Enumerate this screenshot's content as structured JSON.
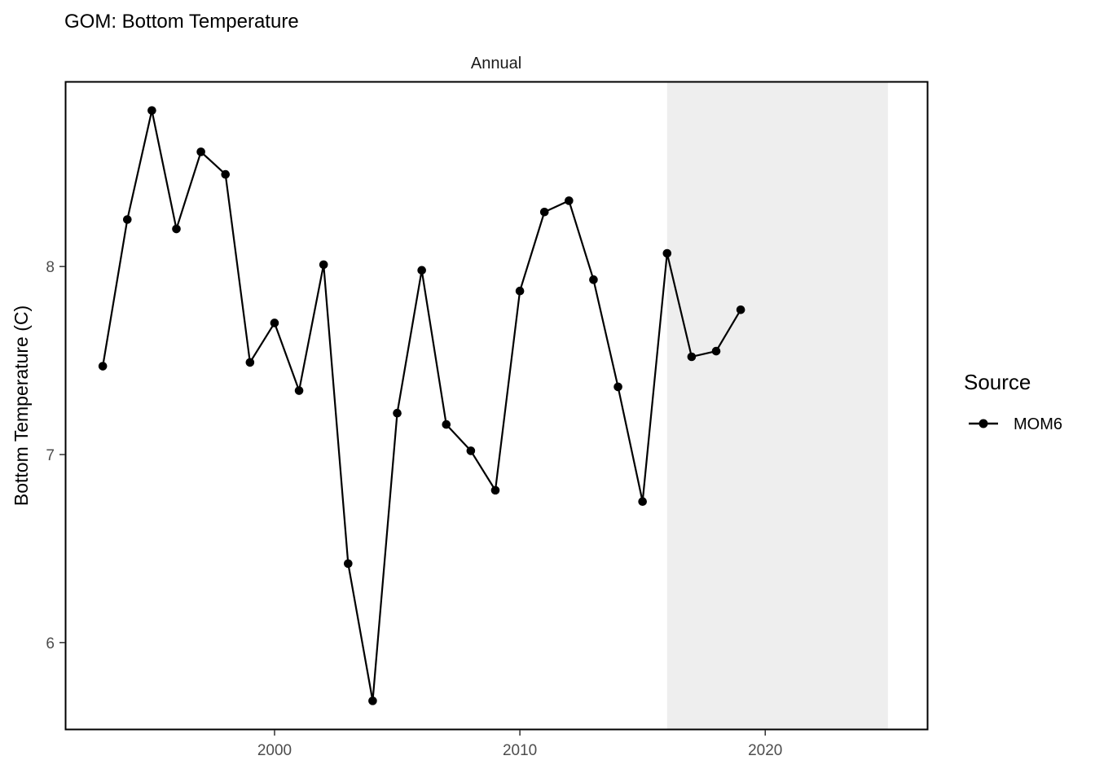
{
  "chart_data": {
    "type": "line",
    "title": "GOM: Bottom Temperature",
    "facet_label": "Annual",
    "xlabel": "",
    "ylabel": "Bottom Temperature (C)",
    "xlim": [
      1991.5,
      2026.6
    ],
    "ylim": [
      5.54,
      8.98
    ],
    "x_ticks": [
      2000,
      2010,
      2020
    ],
    "y_ticks": [
      6,
      7,
      8
    ],
    "grid": false,
    "shaded_region": {
      "x_start": 2016,
      "x_end": 2025,
      "color": "#eeeeee"
    },
    "legend": {
      "title": "Source",
      "position": "right"
    },
    "series": [
      {
        "name": "MOM6",
        "color": "#000000",
        "x": [
          1993,
          1994,
          1995,
          1996,
          1997,
          1998,
          1999,
          2000,
          2001,
          2002,
          2003,
          2004,
          2005,
          2006,
          2007,
          2008,
          2009,
          2010,
          2011,
          2012,
          2013,
          2014,
          2015,
          2016,
          2017,
          2018,
          2019
        ],
        "y": [
          7.47,
          8.25,
          8.83,
          8.2,
          8.61,
          8.49,
          7.49,
          7.7,
          7.34,
          8.01,
          6.42,
          5.69,
          7.22,
          7.98,
          7.16,
          7.02,
          6.81,
          7.87,
          8.29,
          8.35,
          7.93,
          7.36,
          6.75,
          8.07,
          7.52,
          7.55,
          7.77
        ]
      }
    ]
  }
}
